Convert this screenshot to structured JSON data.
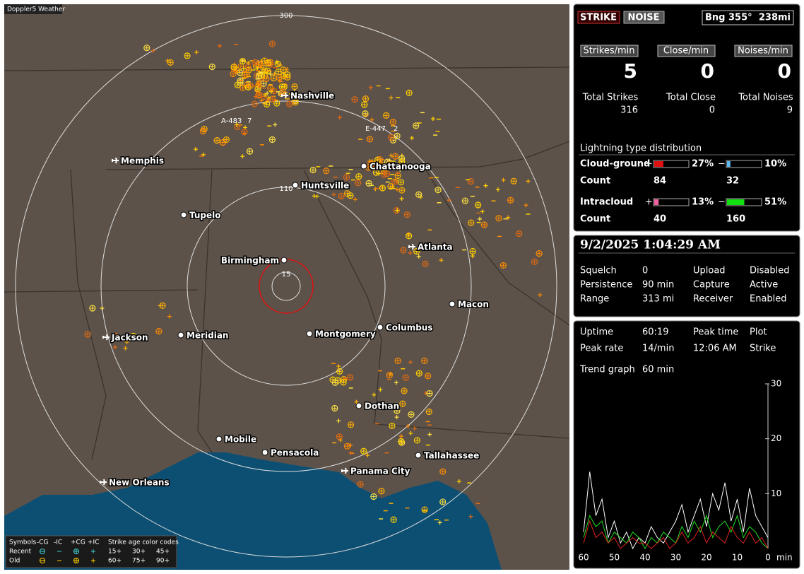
{
  "map": {
    "title": "Doppler5 Weather",
    "ring_labels": [
      "300",
      "110",
      "15"
    ],
    "cities": [
      {
        "name": "Nashville",
        "icon": "airport"
      },
      {
        "name": "Memphis",
        "icon": "airport"
      },
      {
        "name": "Chattanooga",
        "icon": "dot"
      },
      {
        "name": "Huntsville",
        "icon": "dot"
      },
      {
        "name": "Tupelo",
        "icon": "dot"
      },
      {
        "name": "Atlanta",
        "icon": "airport"
      },
      {
        "name": "Birmingham",
        "icon": "dot"
      },
      {
        "name": "Macon",
        "icon": "dot"
      },
      {
        "name": "Jackson",
        "icon": "airport"
      },
      {
        "name": "Meridian",
        "icon": "dot"
      },
      {
        "name": "Montgomery",
        "icon": "dot"
      },
      {
        "name": "Columbus",
        "icon": "dot"
      },
      {
        "name": "Dothan",
        "icon": "dot"
      },
      {
        "name": "Mobile",
        "icon": "dot"
      },
      {
        "name": "Pensacola",
        "icon": "dot"
      },
      {
        "name": "Tallahassee",
        "icon": "dot"
      },
      {
        "name": "Panama City",
        "icon": "airport"
      },
      {
        "name": "New Orleans",
        "icon": "airport"
      }
    ],
    "markers": [
      "A-483",
      "7",
      "E-447",
      "2"
    ],
    "legend": {
      "symbols": "Symbols",
      "types": [
        "-CG",
        "-IC",
        "+CG",
        "+IC"
      ],
      "age_title": "Strike age color codes",
      "rows": [
        "Recent",
        "Old"
      ],
      "ages": [
        [
          "15+",
          "30+",
          "45+"
        ],
        [
          "60+",
          "75+",
          "90+"
        ]
      ]
    }
  },
  "panel": {
    "tabs": [
      "STRIKE",
      "NOISE"
    ],
    "bearing": "Bng 355°",
    "distance": "238mi",
    "rates": [
      {
        "label": "Strikes/min",
        "value": 5
      },
      {
        "label": "Close/min",
        "value": 0
      },
      {
        "label": "Noises/min",
        "value": 0
      }
    ],
    "totals": [
      {
        "label": "Total Strikes",
        "value": 316
      },
      {
        "label": "Total Close",
        "value": 0
      },
      {
        "label": "Total Noises",
        "value": 9
      }
    ],
    "distribution": {
      "title": "Lightning type distribution",
      "count_label": "Count",
      "signs": [
        "+",
        "−"
      ],
      "rows": [
        {
          "name": "Cloud-ground",
          "pos_percent": 27,
          "pos_label": "27%",
          "pos_color": "#e01010",
          "neg_percent": 10,
          "neg_label": "10%",
          "neg_color": "#60b8f0",
          "pos_count": 84,
          "neg_count": 32
        },
        {
          "name": "Intracloud",
          "pos_percent": 13,
          "pos_label": "13%",
          "pos_color": "#f060a0",
          "neg_percent": 51,
          "neg_label": "51%",
          "neg_color": "#10e010",
          "pos_count": 40,
          "neg_count": 160
        }
      ]
    },
    "datetime": "9/2/2025 1:04:29 AM",
    "settings": [
      [
        "Squelch",
        "0",
        "Upload",
        "Disabled"
      ],
      [
        "Persistence",
        "90 min",
        "Capture",
        "Active"
      ],
      [
        "Range",
        "313 mi",
        "Receiver",
        "Enabled"
      ]
    ],
    "uptime": [
      [
        "Uptime",
        "60:19",
        "Peak time",
        "Plot"
      ],
      [
        "Peak rate",
        "14/min",
        "12:06 AM",
        "Strike"
      ]
    ],
    "trend": {
      "label": "Trend graph",
      "window": "60 min",
      "x_unit": "min",
      "xlim": [
        60,
        0
      ],
      "xticks": [
        60,
        50,
        40,
        30,
        20,
        10,
        0
      ],
      "ylim": [
        0,
        30
      ],
      "yticks": [
        10,
        20,
        30
      ],
      "x": [
        60,
        58,
        56,
        54,
        52,
        50,
        48,
        46,
        44,
        42,
        40,
        38,
        36,
        34,
        32,
        30,
        28,
        26,
        24,
        22,
        20,
        18,
        16,
        14,
        12,
        10,
        8,
        6,
        4,
        2,
        0
      ],
      "series": [
        {
          "color": "#ffffff",
          "values": [
            3,
            14,
            6,
            9,
            2,
            5,
            1,
            3,
            0,
            2,
            1,
            4,
            2,
            1,
            3,
            5,
            8,
            3,
            6,
            9,
            4,
            10,
            7,
            12,
            5,
            9,
            3,
            11,
            6,
            4,
            2
          ]
        },
        {
          "color": "#20e020",
          "values": [
            2,
            6,
            4,
            5,
            1,
            3,
            2,
            1,
            3,
            2,
            0,
            2,
            1,
            3,
            2,
            1,
            4,
            2,
            5,
            3,
            6,
            2,
            4,
            5,
            3,
            6,
            2,
            4,
            3,
            1,
            0
          ]
        },
        {
          "color": "#e02020",
          "values": [
            1,
            5,
            2,
            3,
            1,
            2,
            0,
            1,
            2,
            1,
            1,
            0,
            1,
            2,
            0,
            1,
            3,
            1,
            2,
            4,
            1,
            3,
            2,
            1,
            4,
            2,
            1,
            3,
            1,
            2,
            0
          ]
        }
      ]
    }
  }
}
